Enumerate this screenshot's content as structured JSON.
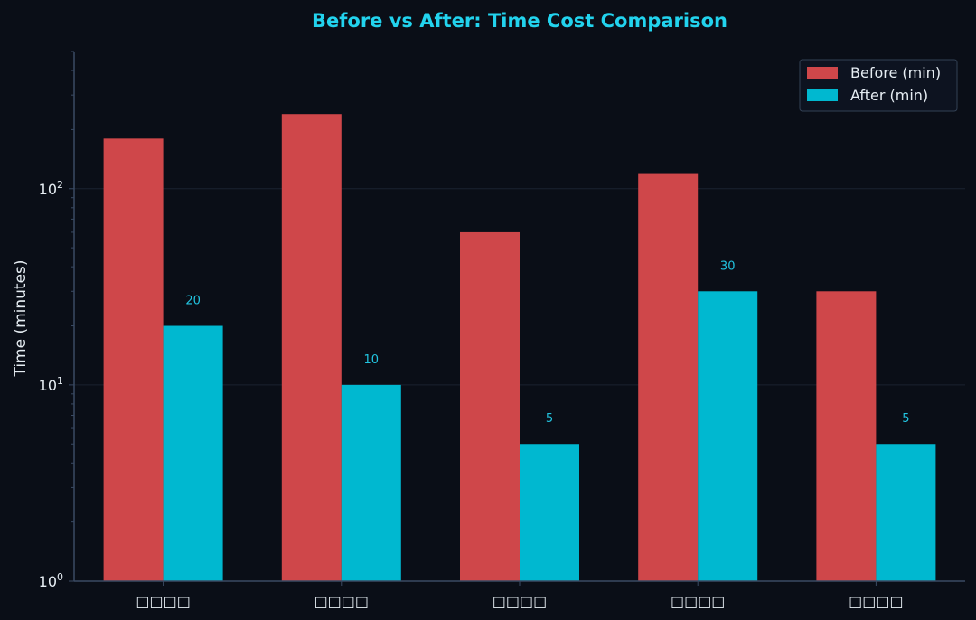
{
  "colors": {
    "background": "#0a0e17",
    "title": "#22d3ee",
    "before": "#cf474a",
    "after": "#00b8d0",
    "after_label": "#22c4e0",
    "axis": "#3a4a63",
    "grid": "#1a2230",
    "text": "#e6edf3",
    "legend_bg": "#0d1320",
    "legend_border": "#334155"
  },
  "chart_data": {
    "type": "bar",
    "title": "Before vs After: Time Cost Comparison",
    "xlabel": "",
    "ylabel": "Time (minutes)",
    "yscale": "log",
    "ylim": [
      1,
      500
    ],
    "yticks": [
      {
        "value": 1,
        "base": "10",
        "exp": "0"
      },
      {
        "value": 10,
        "base": "10",
        "exp": "1"
      },
      {
        "value": 100,
        "base": "10",
        "exp": "2"
      }
    ],
    "categories": [
      "□□□□",
      "□□□□",
      "□□□□",
      "□□□□",
      "□□□□"
    ],
    "series": [
      {
        "name": "Before (min)",
        "values": [
          180,
          240,
          60,
          120,
          30
        ]
      },
      {
        "name": "After (min)",
        "values": [
          20,
          10,
          5,
          30,
          5
        ]
      }
    ],
    "data_labels": [
      "20",
      "10",
      "5",
      "30",
      "5"
    ],
    "grid": true,
    "legend": "top-right"
  }
}
